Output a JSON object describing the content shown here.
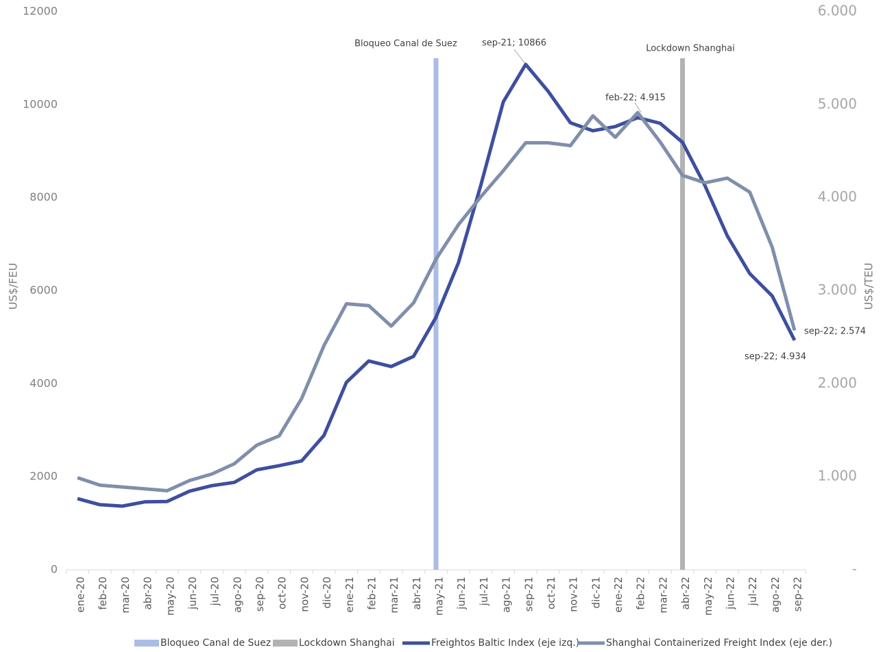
{
  "chart_data": {
    "type": "line",
    "categories": [
      "ene-20",
      "feb-20",
      "mar-20",
      "abr-20",
      "may-20",
      "jun-20",
      "jul-20",
      "ago-20",
      "sep-20",
      "oct-20",
      "nov-20",
      "dic-20",
      "ene-21",
      "feb-21",
      "mar-21",
      "abr-21",
      "may-21",
      "jun-21",
      "jul-21",
      "ago-21",
      "sep-21",
      "oct-21",
      "nov-21",
      "dic-21",
      "ene-22",
      "feb-22",
      "mar-22",
      "abr-22",
      "may-22",
      "jun-22",
      "jul-22",
      "ago-22",
      "sep-22"
    ],
    "series": [
      {
        "name": "Bloqueo Canal de Suez",
        "type": "bar",
        "color": "#a9bde6",
        "values": [
          null,
          null,
          null,
          null,
          null,
          null,
          null,
          null,
          null,
          null,
          null,
          null,
          null,
          null,
          null,
          null,
          11000,
          null,
          null,
          null,
          null,
          null,
          null,
          null,
          null,
          null,
          null,
          null,
          null,
          null,
          null,
          null,
          null
        ]
      },
      {
        "name": "Lockdown Shanghai",
        "type": "bar",
        "color": "#b3b3b3",
        "values": [
          null,
          null,
          null,
          null,
          null,
          null,
          null,
          null,
          null,
          null,
          null,
          null,
          null,
          null,
          null,
          null,
          null,
          null,
          null,
          null,
          null,
          null,
          null,
          null,
          null,
          null,
          null,
          11000,
          null,
          null,
          null,
          null,
          null
        ]
      },
      {
        "name": "Freightos Baltic Index (eje izq.)",
        "type": "line",
        "color": "#3e4f9e",
        "values": [
          1530,
          1400,
          1370,
          1460,
          1470,
          1690,
          1810,
          1880,
          2150,
          2240,
          2340,
          2890,
          4030,
          4490,
          4370,
          4590,
          5430,
          6600,
          8270,
          10060,
          10866,
          10290,
          9610,
          9440,
          9530,
          9720,
          9600,
          9190,
          8260,
          7180,
          6370,
          5890,
          4934
        ]
      },
      {
        "name": "Shanghai Containerized Freight Index (eje der.)",
        "type": "line",
        "axis": "y2",
        "color": "#7f8fab",
        "values": [
          990,
          910,
          890,
          870,
          850,
          960,
          1030,
          1140,
          1340,
          1440,
          1840,
          2410,
          2860,
          2840,
          2620,
          2870,
          3340,
          3710,
          4010,
          4290,
          4590,
          4590,
          4560,
          4880,
          4650,
          4915,
          4600,
          4240,
          4160,
          4210,
          4060,
          3470,
          2574
        ]
      }
    ],
    "y_label": "US$/FEU",
    "y2_label": "US$/TEU",
    "ylim": [
      0,
      12000
    ],
    "yticks": [
      0,
      2000,
      4000,
      6000,
      8000,
      10000,
      12000
    ],
    "y2lim": [
      0,
      6000
    ],
    "y2ticks": [
      {
        "value": 0,
        "label": "-"
      },
      {
        "value": 1000,
        "label": "1.000"
      },
      {
        "value": 2000,
        "label": "2.000"
      },
      {
        "value": 3000,
        "label": "3.000"
      },
      {
        "value": 4000,
        "label": "4.000"
      },
      {
        "value": 5000,
        "label": "5.000"
      },
      {
        "value": 6000,
        "label": "6.000"
      }
    ],
    "annotations": [
      "Bloqueo Canal de Suez",
      "Lockdown Shanghai",
      "sep-21; 10866",
      "feb-22;  4.915",
      "sep-22; 2.574",
      "sep-22;  4.934"
    ],
    "grid": false,
    "legend": "bottom"
  }
}
